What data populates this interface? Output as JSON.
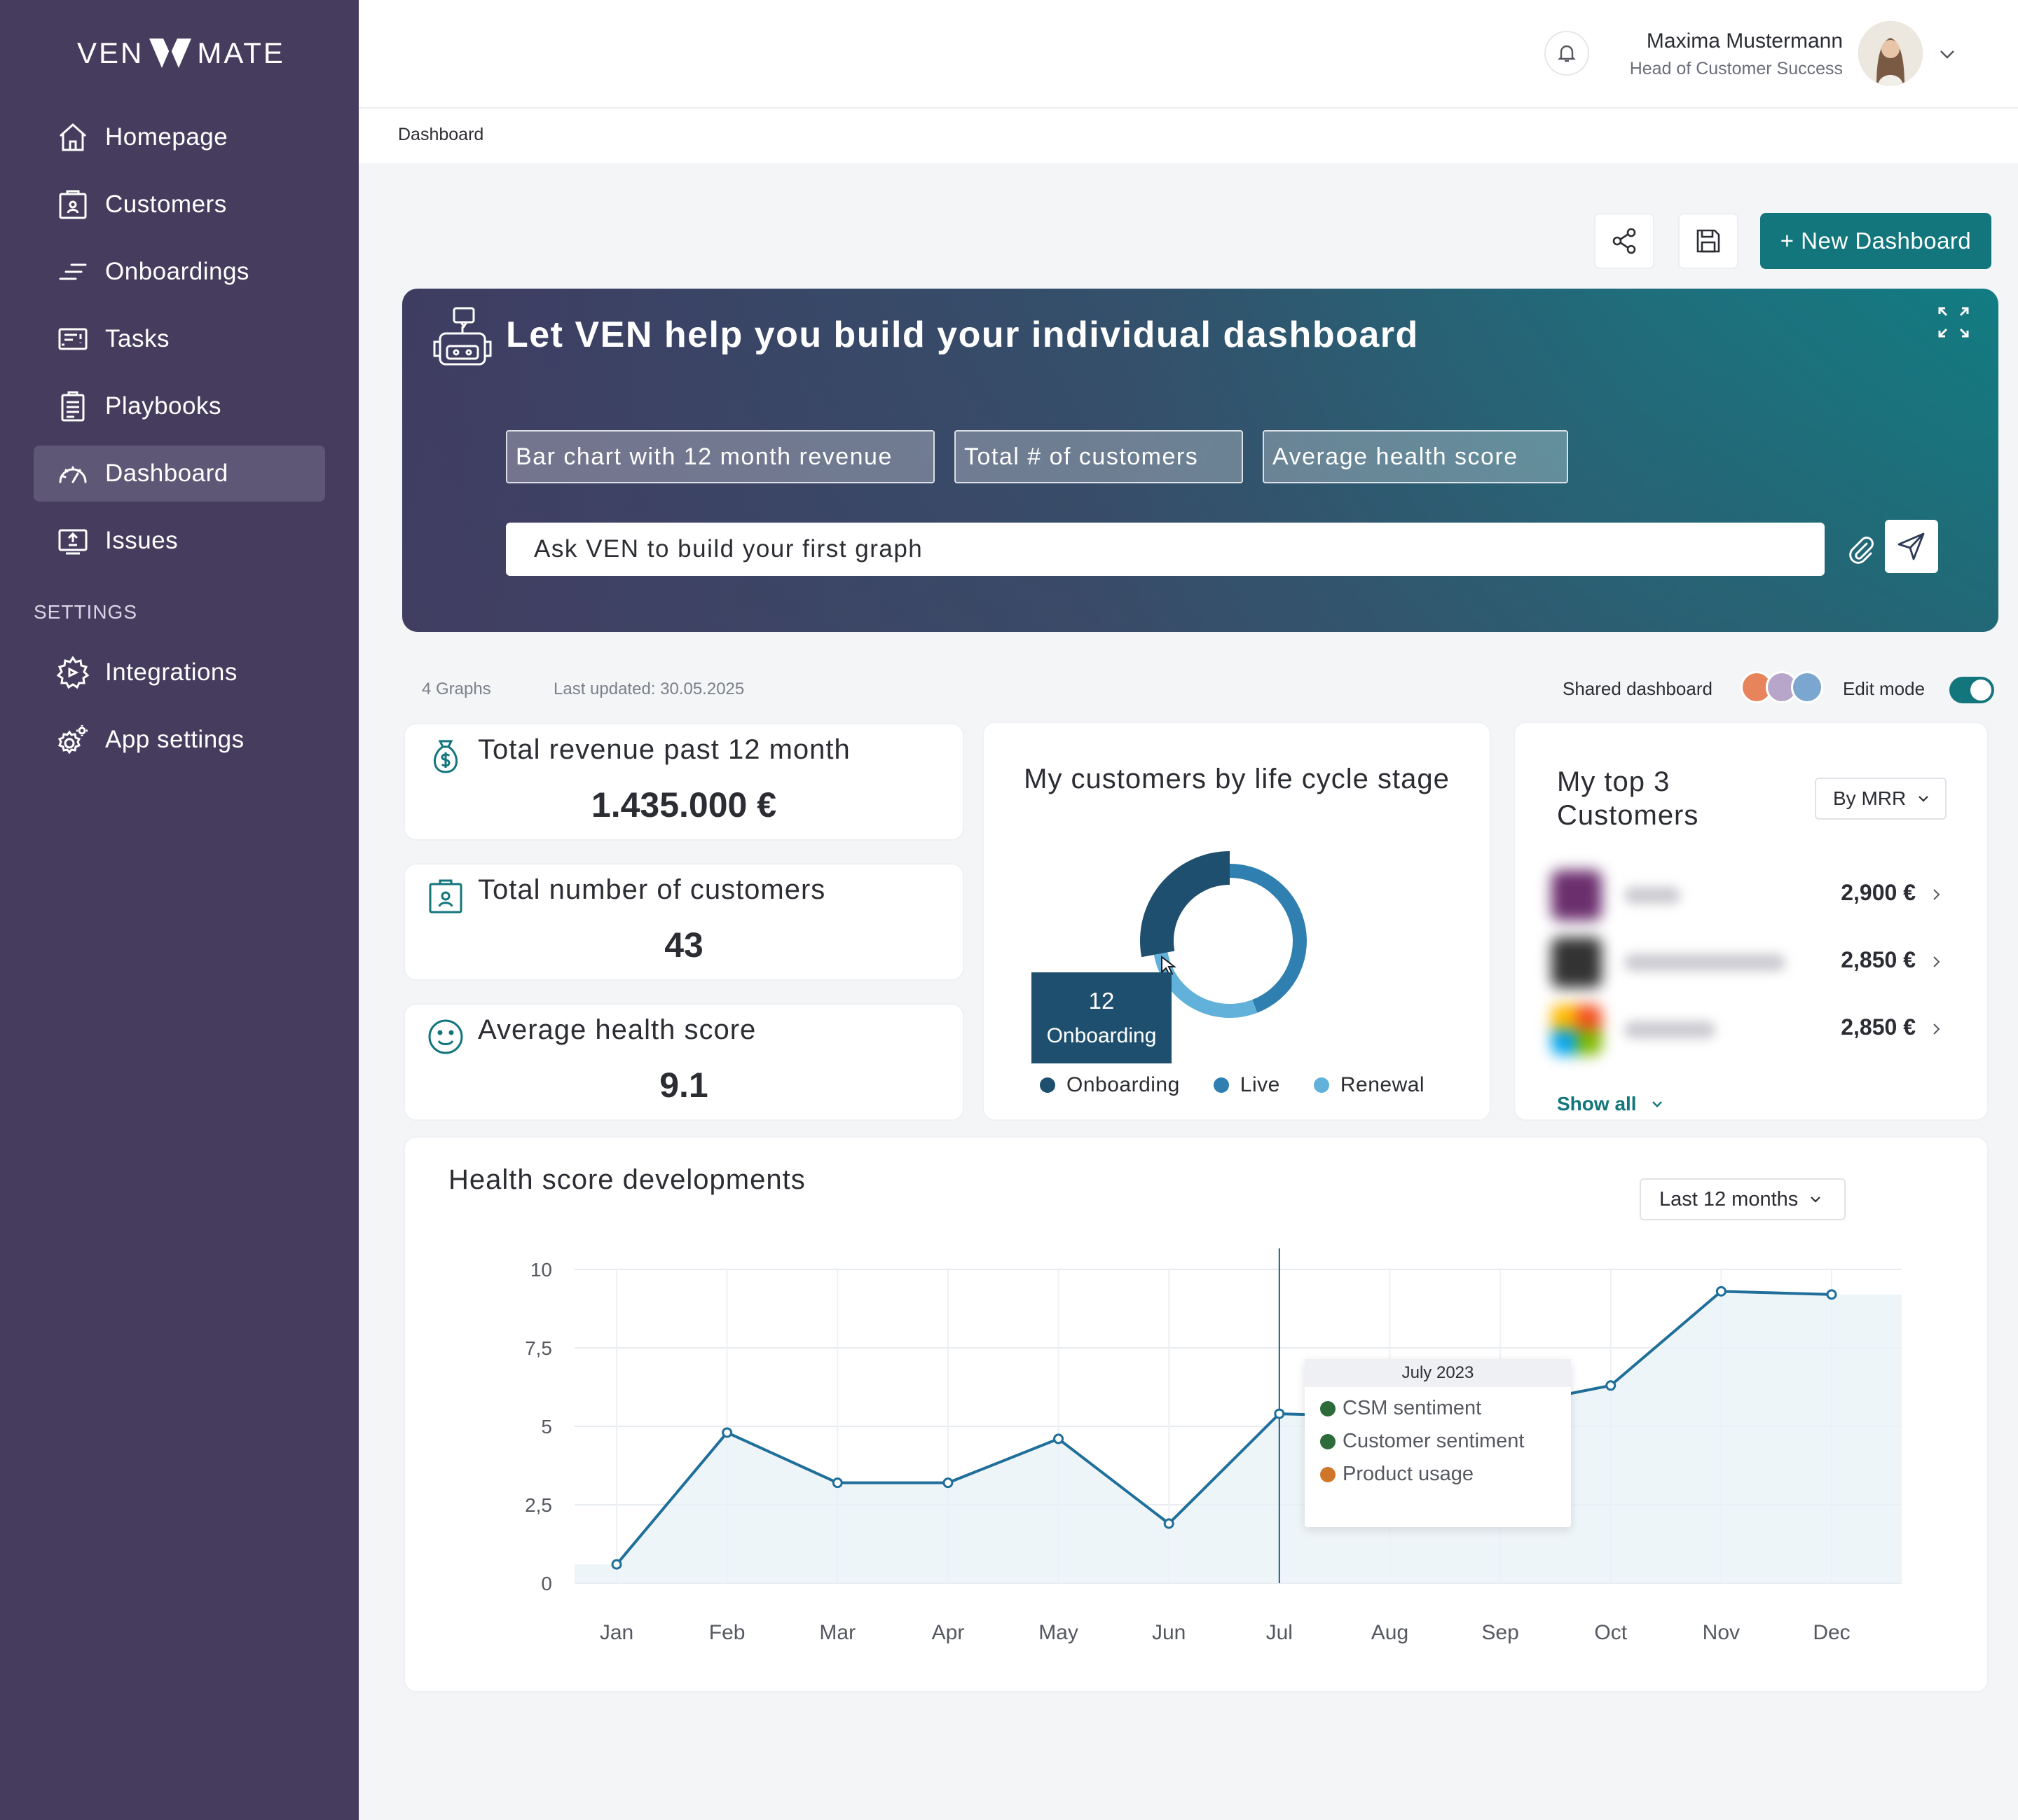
{
  "app": {
    "logo_left": "VEN",
    "logo_right": "MATE"
  },
  "sidebar": {
    "items": [
      {
        "label": "Homepage",
        "icon": "home-icon"
      },
      {
        "label": "Customers",
        "icon": "customers-icon"
      },
      {
        "label": "Onboardings",
        "icon": "onboardings-icon"
      },
      {
        "label": "Tasks",
        "icon": "tasks-icon"
      },
      {
        "label": "Playbooks",
        "icon": "playbooks-icon"
      },
      {
        "label": "Dashboard",
        "icon": "dashboard-icon",
        "active": true
      },
      {
        "label": "Issues",
        "icon": "issues-icon"
      }
    ],
    "settings_heading": "SETTINGS",
    "settings_items": [
      {
        "label": "Integrations",
        "icon": "integrations-icon"
      },
      {
        "label": "App settings",
        "icon": "gear-icon"
      }
    ]
  },
  "header": {
    "user_name": "Maxima Mustermann",
    "user_role": "Head of Customer Success",
    "breadcrumb": "Dashboard"
  },
  "toolbar": {
    "new_dashboard_label": "+ New Dashboard"
  },
  "hero": {
    "title": "Let VEN help you build your individual dashboard",
    "chips": [
      "Bar chart with 12 month revenue",
      "Total # of customers",
      "Average health score"
    ],
    "input_placeholder": "Ask VEN to build your first graph"
  },
  "meta": {
    "graphs_count": "4 Graphs",
    "last_updated": "Last updated: 30.05.2025",
    "shared_label": "Shared dashboard",
    "edit_mode_label": "Edit mode",
    "edit_mode_on": true
  },
  "kpis": [
    {
      "title": "Total revenue past 12 month",
      "value": "1.435.000 €",
      "icon": "money-bag-icon"
    },
    {
      "title": "Total number of customers",
      "value": "43",
      "icon": "customers-icon"
    },
    {
      "title": "Average health score",
      "value": "9.1",
      "icon": "smiley-icon"
    }
  ],
  "lifecycle": {
    "title": "My customers by life cycle stage",
    "tooltip_value": "12",
    "tooltip_label": "Onboarding",
    "legend": [
      {
        "label": "Onboarding",
        "color": "#1f4f6e"
      },
      {
        "label": "Live",
        "color": "#2f7fb0"
      },
      {
        "label": "Renewal",
        "color": "#62b1da"
      }
    ]
  },
  "top_customers": {
    "title_line1": "My top 3",
    "title_line2": "Customers",
    "sort_label": "By MRR",
    "rows": [
      {
        "amount": "2,900 €"
      },
      {
        "amount": "2,850 €"
      },
      {
        "amount": "2,850 €"
      }
    ],
    "show_all": "Show all"
  },
  "health": {
    "title": "Health score developments",
    "period_label": "Last 12 months",
    "tooltip_title": "July 2023",
    "tooltip_items": [
      {
        "label": "CSM sentiment",
        "color": "#2e6b3a"
      },
      {
        "label": "Customer sentiment",
        "color": "#2e6b3a"
      },
      {
        "label": "Product usage",
        "color": "#d0762b"
      }
    ]
  },
  "chart_data": {
    "type": "line",
    "title": "Health score developments",
    "categories": [
      "Jan",
      "Feb",
      "Mar",
      "Apr",
      "May",
      "Jun",
      "Jul",
      "Aug",
      "Sep",
      "Oct",
      "Nov",
      "Dec"
    ],
    "x_tick_labels": [
      "Jan",
      "Feb",
      "Mar",
      "Apr",
      "May",
      "Jun",
      "Jul",
      "Aug",
      "Sep",
      "Oct",
      "Nov",
      "Dec"
    ],
    "y_tick_labels": [
      "0",
      "2,5",
      "5",
      "7,5",
      "10"
    ],
    "y_ticks": [
      0,
      2.5,
      5,
      7.5,
      10
    ],
    "ylim": [
      0,
      10
    ],
    "series": [
      {
        "values": [
          0.6,
          4.8,
          3.2,
          3.2,
          4.6,
          1.9,
          5.4,
          5.3,
          5.6,
          6.3,
          9.3,
          9.2
        ]
      }
    ],
    "highlight": "Jul",
    "grid": true
  },
  "lifecycle_chart_data": {
    "type": "pie",
    "categories": [
      "Onboarding",
      "Live",
      "Renewal"
    ],
    "values": [
      12,
      19,
      12
    ]
  }
}
